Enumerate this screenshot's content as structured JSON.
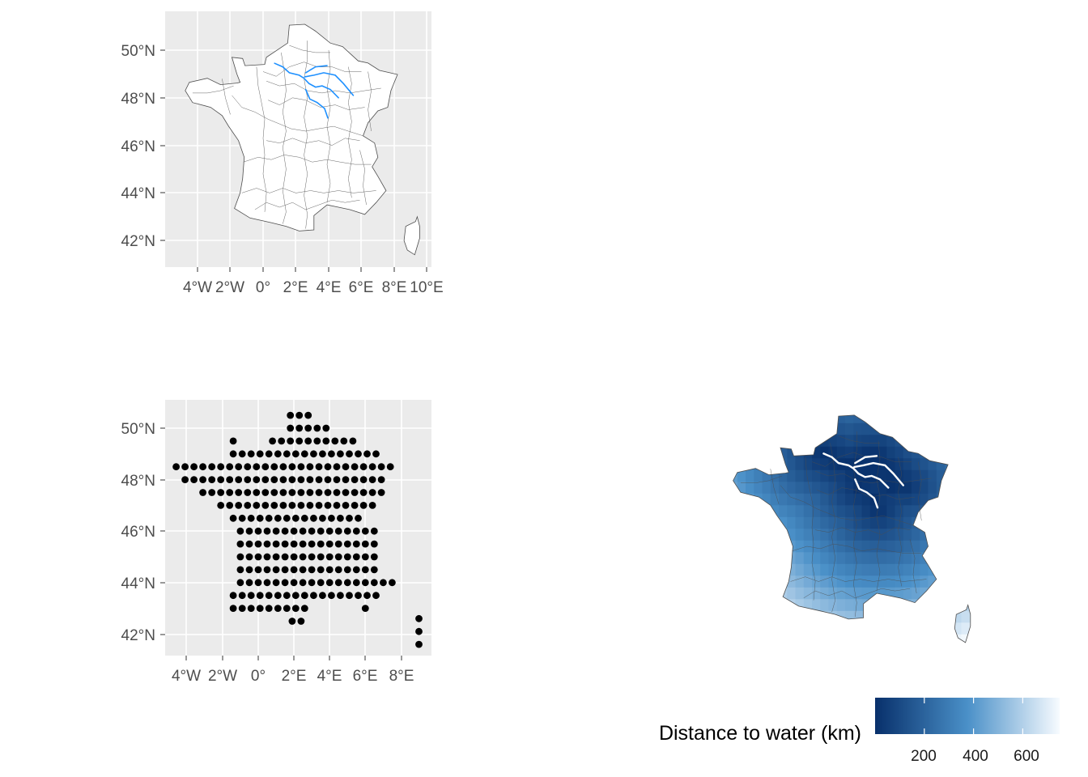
{
  "colors": {
    "panel_bg": "#ebebeb",
    "grid": "#ffffff",
    "river": "#1e90ff",
    "outline": "#4d4d4d",
    "point": "#000000",
    "scale_low": "#08306b",
    "scale_mid": "#4a90c8",
    "scale_high": "#f7fbff"
  },
  "panels": {
    "map_rivers": {
      "lat_ticks": [
        "50°N",
        "48°N",
        "46°N",
        "44°N",
        "42°N"
      ],
      "lon_ticks": [
        "4°W",
        "2°W",
        "0°",
        "2°E",
        "4°E",
        "6°E",
        "8°E",
        "10°E"
      ]
    },
    "points": {
      "lat_ticks": [
        "50°N",
        "48°N",
        "46°N",
        "44°N",
        "42°N"
      ],
      "lon_ticks": [
        "4°W",
        "2°W",
        "0°",
        "2°E",
        "4°E",
        "6°E",
        "8°E"
      ]
    },
    "distance_map": {
      "legend": {
        "title": "Distance to water (km)",
        "ticks": [
          "200",
          "400",
          "600"
        ],
        "range_km": [
          0,
          750
        ]
      }
    }
  }
}
